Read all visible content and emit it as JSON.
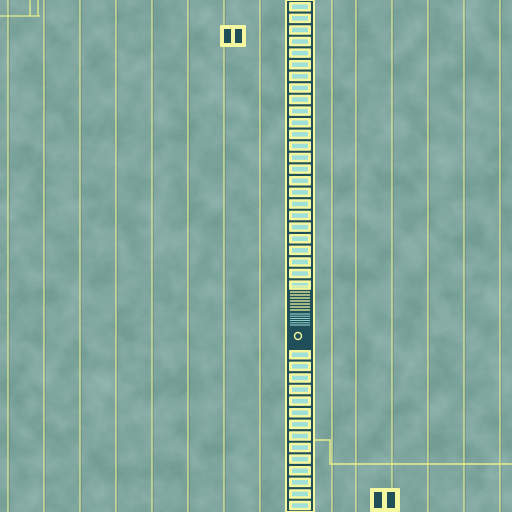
{
  "image": {
    "kind": "false-color microscope image of a silicon die surface",
    "palette": {
      "background": "#6f9a8e",
      "background_mottle_light": "#86b59a",
      "background_mottle_dark": "#5f7fa0",
      "trace": "#e7f08a",
      "trace_shadow": "#4f6d86",
      "pad_fill": "#1f4f58",
      "pad_frame": "#f4f7a0",
      "pad_window": "#9fe0d8"
    }
  }
}
